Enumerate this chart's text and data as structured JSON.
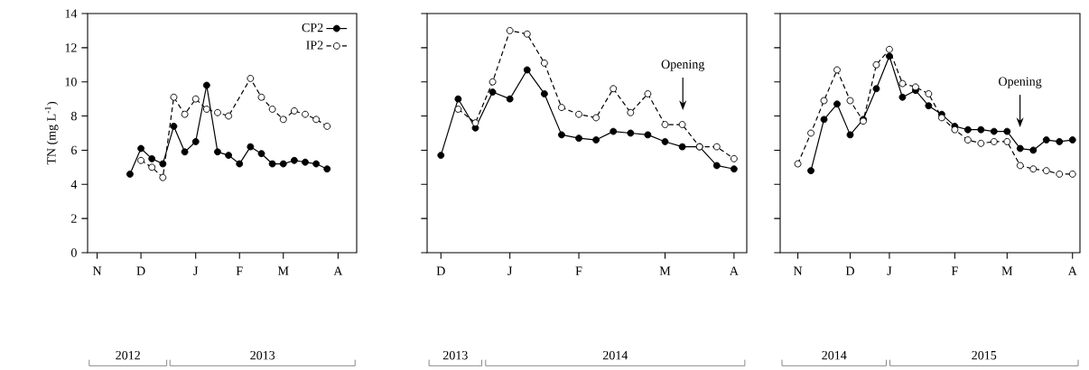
{
  "chart_data": [
    {
      "type": "line",
      "ylabel": "TN (mg L$^{-1}$)",
      "ylim": [
        0,
        14
      ],
      "yticks": [
        0,
        2,
        4,
        6,
        8,
        10,
        12,
        14
      ],
      "categories": [
        "N",
        null,
        null,
        null,
        "D",
        null,
        null,
        null,
        null,
        "J",
        null,
        null,
        null,
        "F",
        null,
        null,
        null,
        "M",
        null,
        null,
        null,
        null,
        "A"
      ],
      "legend": "top right",
      "grid": false,
      "annotations": [
        "2012",
        "2013"
      ],
      "series": [
        {
          "name": "CP2",
          "color": "#000000",
          "line_style": "solid",
          "marker": "circle",
          "values": [
            null,
            null,
            null,
            4.6,
            6.1,
            5.5,
            5.2,
            7.4,
            5.9,
            6.5,
            9.8,
            5.9,
            5.7,
            5.2,
            6.2,
            5.8,
            5.2,
            5.2,
            5.4,
            5.3,
            5.2,
            4.9,
            null
          ]
        },
        {
          "name": "IP2",
          "color": "#000000",
          "line_style": "dashed",
          "marker": "circle",
          "values": [
            null,
            null,
            null,
            null,
            5.4,
            5.0,
            4.4,
            9.1,
            8.1,
            9.0,
            8.4,
            8.2,
            8.0,
            null,
            10.2,
            9.1,
            8.4,
            7.8,
            8.3,
            8.1,
            7.8,
            7.4,
            null
          ]
        }
      ]
    },
    {
      "type": "line",
      "ylim": [
        0,
        14
      ],
      "yticks": [
        0,
        2,
        4,
        6,
        8,
        10,
        12,
        14
      ],
      "tick_labels": "x",
      "categories": [
        "D",
        null,
        null,
        null,
        "J",
        null,
        null,
        null,
        "F",
        null,
        null,
        null,
        null,
        "M",
        null,
        null,
        null,
        "A"
      ],
      "grid": false,
      "annotations": [
        "Opening",
        "2013",
        "2014"
      ],
      "series": [
        {
          "color": "#000000",
          "line_style": "solid",
          "marker": "circle",
          "values": [
            5.7,
            9.0,
            7.3,
            9.4,
            9.0,
            10.7,
            9.3,
            6.9,
            6.7,
            6.6,
            7.1,
            7.0,
            6.9,
            6.5,
            6.2,
            6.2,
            5.1,
            4.9
          ]
        },
        {
          "color": "#000000",
          "line_style": "dashed",
          "marker": "circle",
          "values": [
            null,
            8.4,
            7.6,
            10.0,
            13.0,
            12.8,
            11.1,
            8.5,
            8.1,
            7.9,
            9.6,
            8.2,
            9.3,
            7.5,
            7.5,
            6.2,
            6.2,
            5.5
          ]
        }
      ]
    },
    {
      "type": "line",
      "ylim": [
        0,
        14
      ],
      "yticks": [
        0,
        2,
        4,
        6,
        8,
        10,
        12,
        14
      ],
      "tick_labels": "x",
      "categories": [
        "N",
        null,
        null,
        null,
        "D",
        null,
        null,
        "J",
        null,
        null,
        null,
        null,
        "F",
        null,
        null,
        null,
        "M",
        null,
        null,
        null,
        null,
        "A"
      ],
      "grid": false,
      "annotations": [
        "Opening",
        "2014",
        "2015"
      ],
      "series": [
        {
          "color": "#000000",
          "line_style": "solid",
          "marker": "circle",
          "values": [
            null,
            4.8,
            7.8,
            8.7,
            6.9,
            7.8,
            9.6,
            11.5,
            9.1,
            9.5,
            8.6,
            8.1,
            7.4,
            7.2,
            7.2,
            7.1,
            7.1,
            6.1,
            6.0,
            6.6,
            6.5,
            6.6
          ]
        },
        {
          "color": "#000000",
          "line_style": "dashed",
          "marker": "circle",
          "values": [
            5.2,
            7.0,
            8.9,
            10.7,
            8.9,
            7.7,
            11.0,
            11.9,
            9.9,
            9.7,
            9.3,
            7.9,
            7.2,
            6.6,
            6.4,
            6.5,
            6.5,
            5.1,
            4.9,
            4.8,
            4.6,
            4.6
          ]
        }
      ]
    }
  ]
}
